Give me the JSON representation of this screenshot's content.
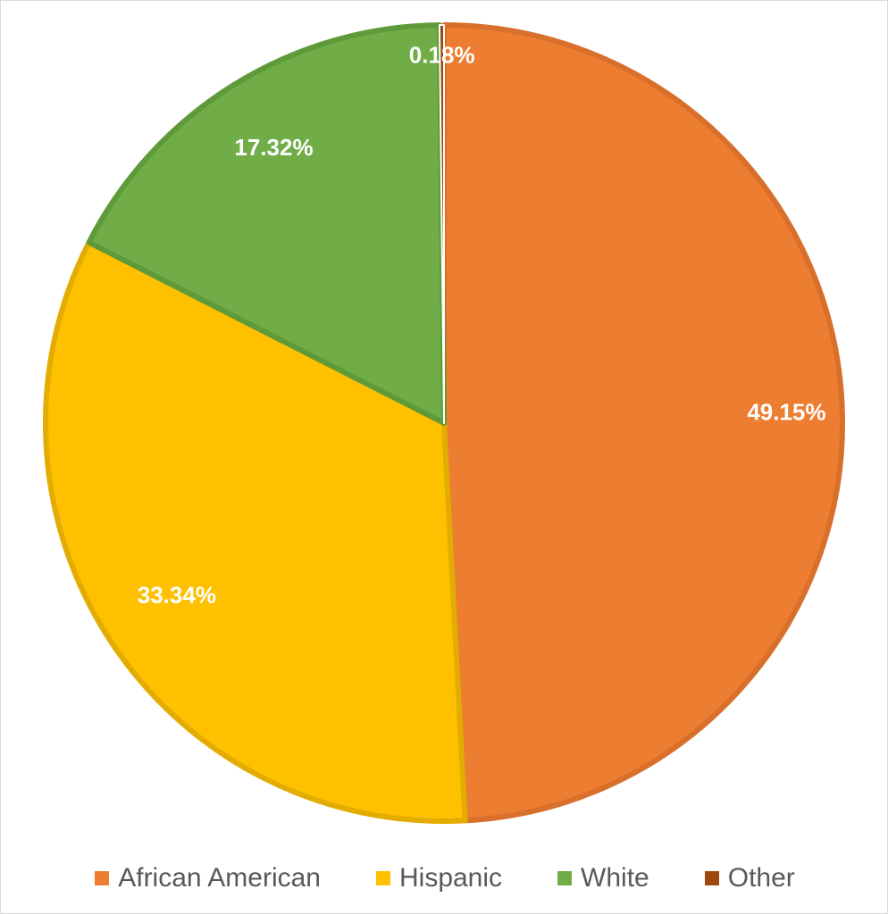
{
  "chart_data": {
    "type": "pie",
    "title": "",
    "start_angle_deg": 0,
    "direction": "clockwise",
    "legend_position": "bottom",
    "slices": [
      {
        "label": "African American",
        "value": 49.15,
        "display": "49.15%",
        "color": "#ED7D31",
        "border": "#D86F2A"
      },
      {
        "label": "Hispanic",
        "value": 33.34,
        "display": "33.34%",
        "color": "#FFC000",
        "border": "#E3AC00"
      },
      {
        "label": "White",
        "value": 17.32,
        "display": "17.32%",
        "color": "#70AD47",
        "border": "#5E9A39"
      },
      {
        "label": "Other",
        "value": 0.18,
        "display": "0.18%",
        "color": "#9E480E",
        "border": "#ffffff"
      }
    ]
  },
  "legend": {
    "items": [
      {
        "label": "African American",
        "color": "#ED7D31"
      },
      {
        "label": "Hispanic",
        "color": "#FFC000"
      },
      {
        "label": "White",
        "color": "#70AD47"
      },
      {
        "label": "Other",
        "color": "#9E480E"
      }
    ]
  }
}
